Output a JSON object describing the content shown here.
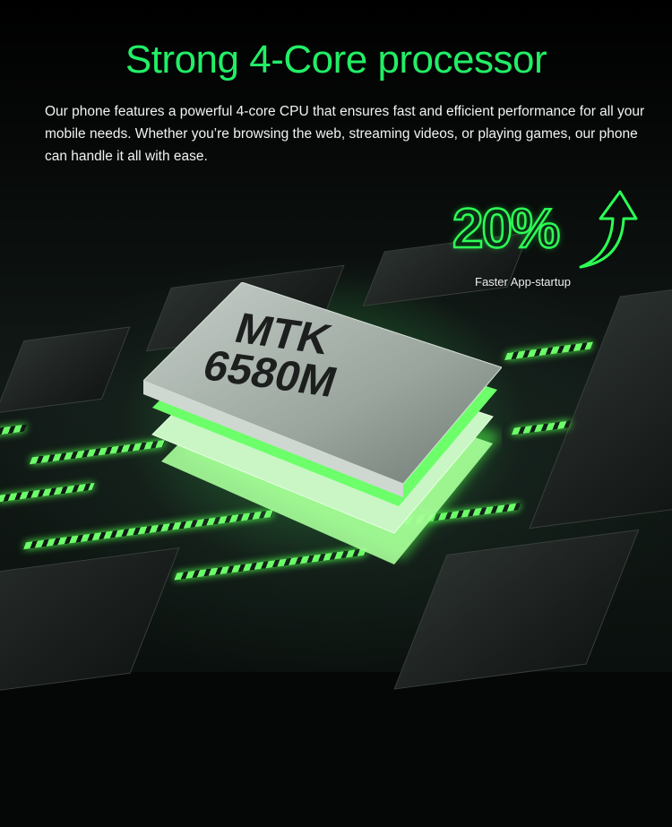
{
  "header": {
    "title": "Strong 4-Core processor",
    "description": "Our phone features a powerful 4-core CPU that ensures fast and efficient performance for all your mobile needs. Whether you’re browsing the web, streaming videos, or playing games, our phone can handle it all with ease."
  },
  "stat": {
    "value": "20%",
    "label": "Faster App-startup",
    "icon": "arrow-up-icon"
  },
  "chip": {
    "line1": "MTK",
    "line2": "6580M"
  },
  "colors": {
    "accent": "#22ee66",
    "glow": "#4dff4a",
    "background": "#050706"
  }
}
